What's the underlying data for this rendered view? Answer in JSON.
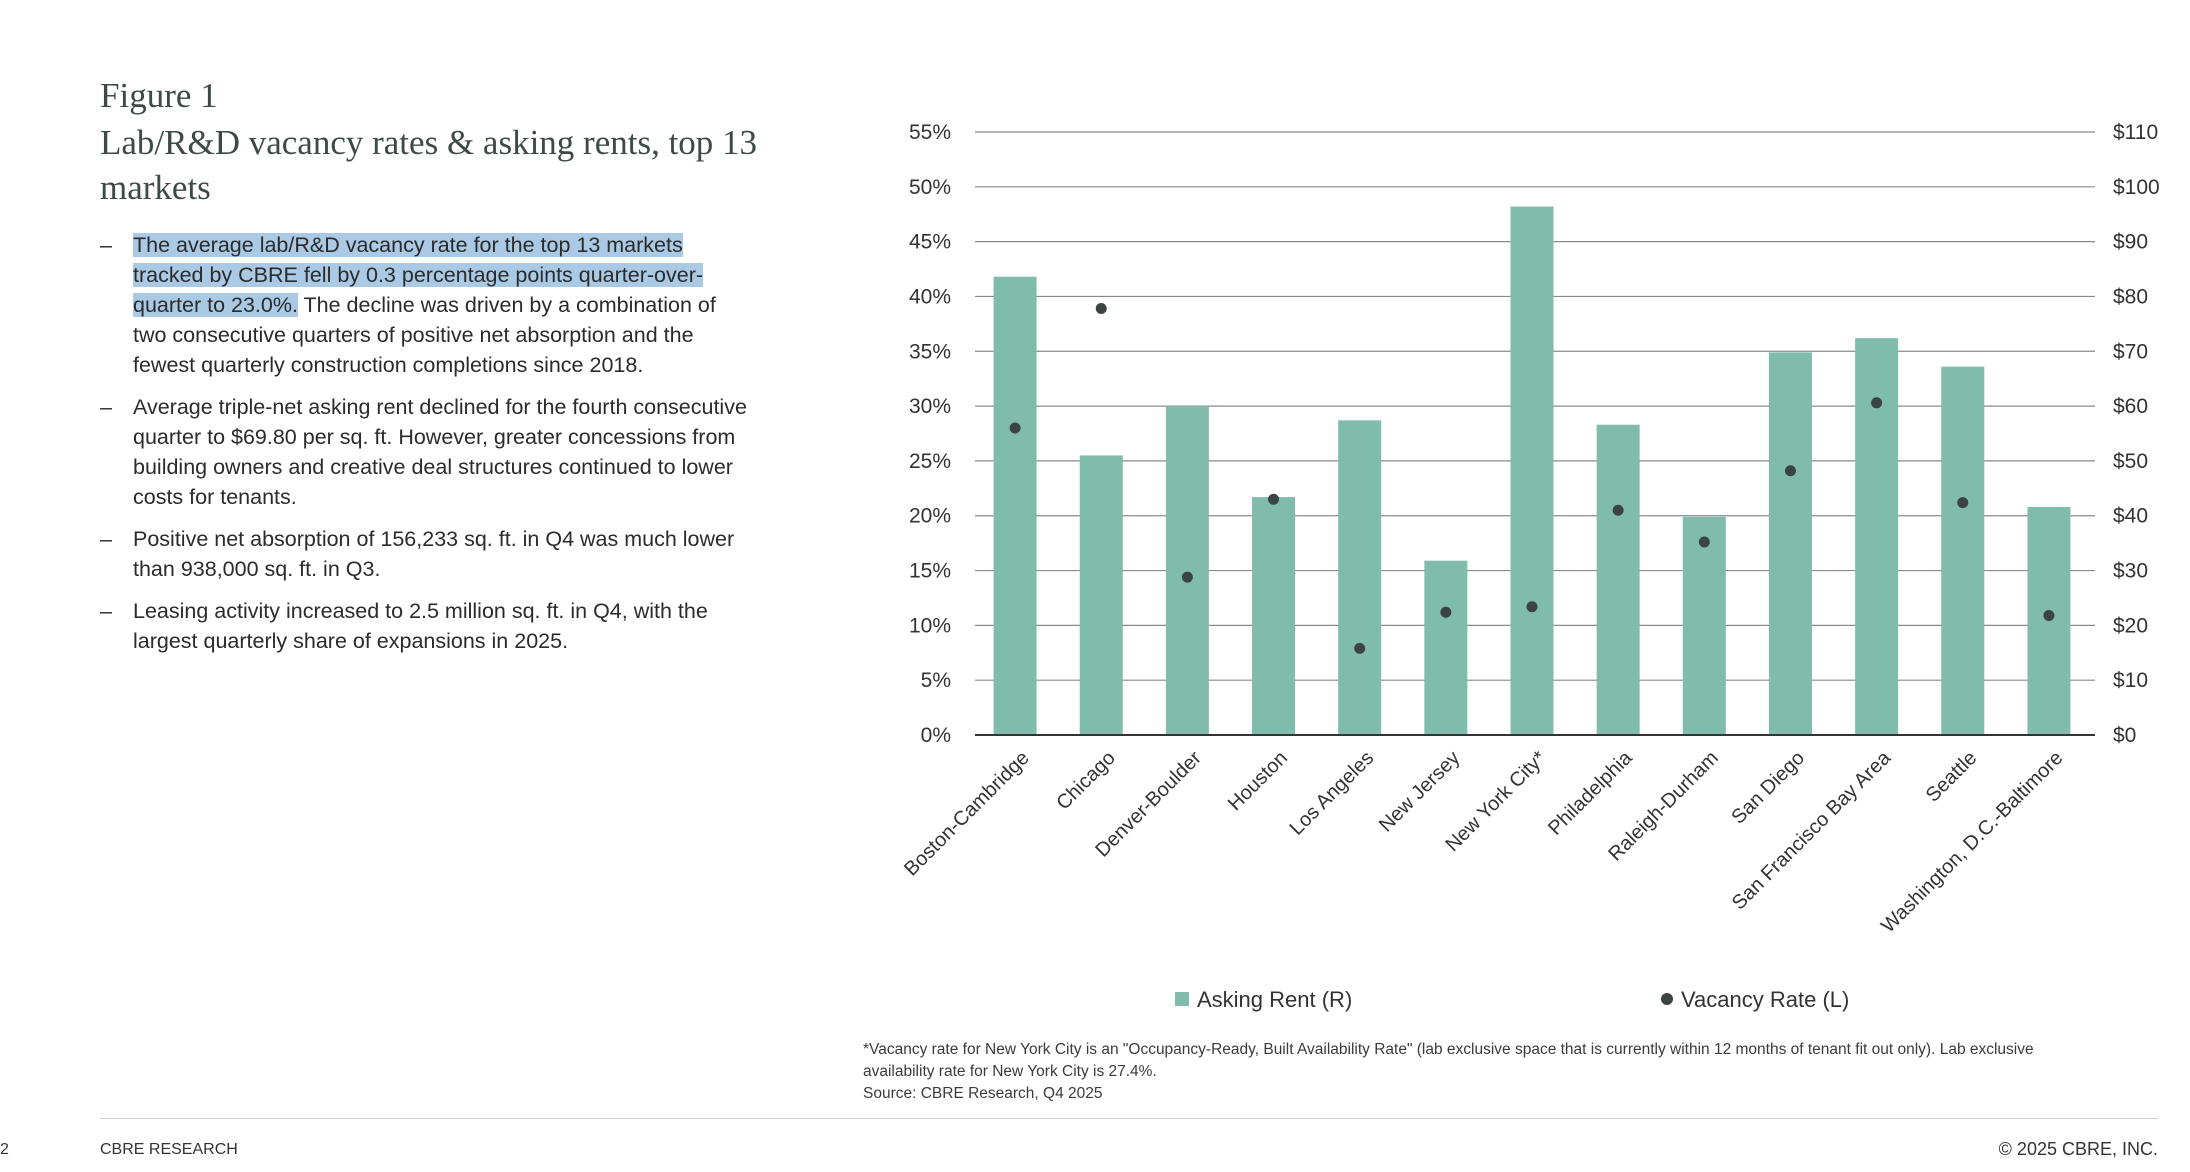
{
  "figure": {
    "label": "Figure 1",
    "title": "Lab/R&D vacancy rates & asking rents, top 13 markets"
  },
  "bullets": [
    {
      "highlight": "The average lab/R&D vacancy rate for the top 13 markets tracked by CBRE fell by 0.3 percentage points quarter-over-quarter to 23.0%.",
      "text": " The decline was driven by a combination of two consecutive quarters of positive net absorption and the fewest quarterly construction completions since 2018."
    },
    {
      "highlight": "",
      "text": "Average triple-net asking rent declined for the fourth consecutive quarter to $69.80 per sq. ft. However, greater concessions from building owners and creative deal structures continued to lower costs for tenants."
    },
    {
      "highlight": "",
      "text": "Positive net absorption of 156,233 sq. ft. in Q4 was much lower than 938,000 sq. ft. in Q3."
    },
    {
      "highlight": "",
      "text": "Leasing activity increased to 2.5 million sq. ft. in Q4, with the largest quarterly share of expansions in 2025."
    }
  ],
  "bullet_dash": "–",
  "chart_data": {
    "type": "bar",
    "title": "Lab/R&D vacancy rates & asking rents, top 13 markets",
    "categories": [
      "Boston-Cambridge",
      "Chicago",
      "Denver-Boulder",
      "Houston",
      "Los Angeles",
      "New Jersey",
      "New York City*",
      "Philadelphia",
      "Raleigh-Durham",
      "San Diego",
      "San Francisco Bay Area",
      "Seattle",
      "Washington, D.C.-Baltimore"
    ],
    "series": [
      {
        "name": "Asking Rent (R)",
        "type": "bar",
        "axis": "right",
        "color": "#80bcab",
        "values": [
          83.6,
          51.0,
          60.0,
          43.4,
          57.4,
          31.8,
          96.4,
          56.6,
          39.8,
          69.8,
          72.4,
          67.2,
          41.6
        ]
      },
      {
        "name": "Vacancy Rate (L)",
        "type": "scatter",
        "axis": "left",
        "color": "#3c4441",
        "values": [
          28.0,
          38.9,
          14.4,
          21.5,
          7.9,
          11.2,
          11.7,
          20.5,
          17.6,
          24.1,
          30.3,
          21.2,
          10.9
        ]
      }
    ],
    "left_axis": {
      "range": [
        0,
        55
      ],
      "ticks": [
        0,
        5,
        10,
        15,
        20,
        25,
        30,
        35,
        40,
        45,
        50,
        55
      ],
      "tick_labels": [
        "0%",
        "5%",
        "10%",
        "15%",
        "20%",
        "25%",
        "30%",
        "35%",
        "40%",
        "45%",
        "50%",
        "55%"
      ]
    },
    "right_axis": {
      "range": [
        0,
        110
      ],
      "ticks": [
        0,
        10,
        20,
        30,
        40,
        50,
        60,
        70,
        80,
        90,
        100,
        110
      ],
      "tick_labels": [
        "$0",
        "$10",
        "$20",
        "$30",
        "$40",
        "$50",
        "$60",
        "$70",
        "$80",
        "$90",
        "$100",
        "$110"
      ]
    },
    "grid": true,
    "legend_position": "bottom",
    "legend": [
      "Asking Rent (R)",
      "Vacancy Rate (L)"
    ]
  },
  "footnote": {
    "note": "*Vacancy rate for New York City is an \"Occupancy-Ready, Built Availability Rate\" (lab exclusive space that is currently within 12 months of tenant fit out only). Lab exclusive availability rate for New York City is 27.4%.",
    "source": "Source: CBRE Research, Q4 2025"
  },
  "footer": {
    "page_number": "2",
    "brand": "CBRE RESEARCH",
    "copyright": "© 2025 CBRE, INC."
  },
  "colors": {
    "bar": "#80bcab",
    "dot": "#3c4441",
    "grid": "#8a8a8a",
    "highlight": "#a9c9e4"
  }
}
